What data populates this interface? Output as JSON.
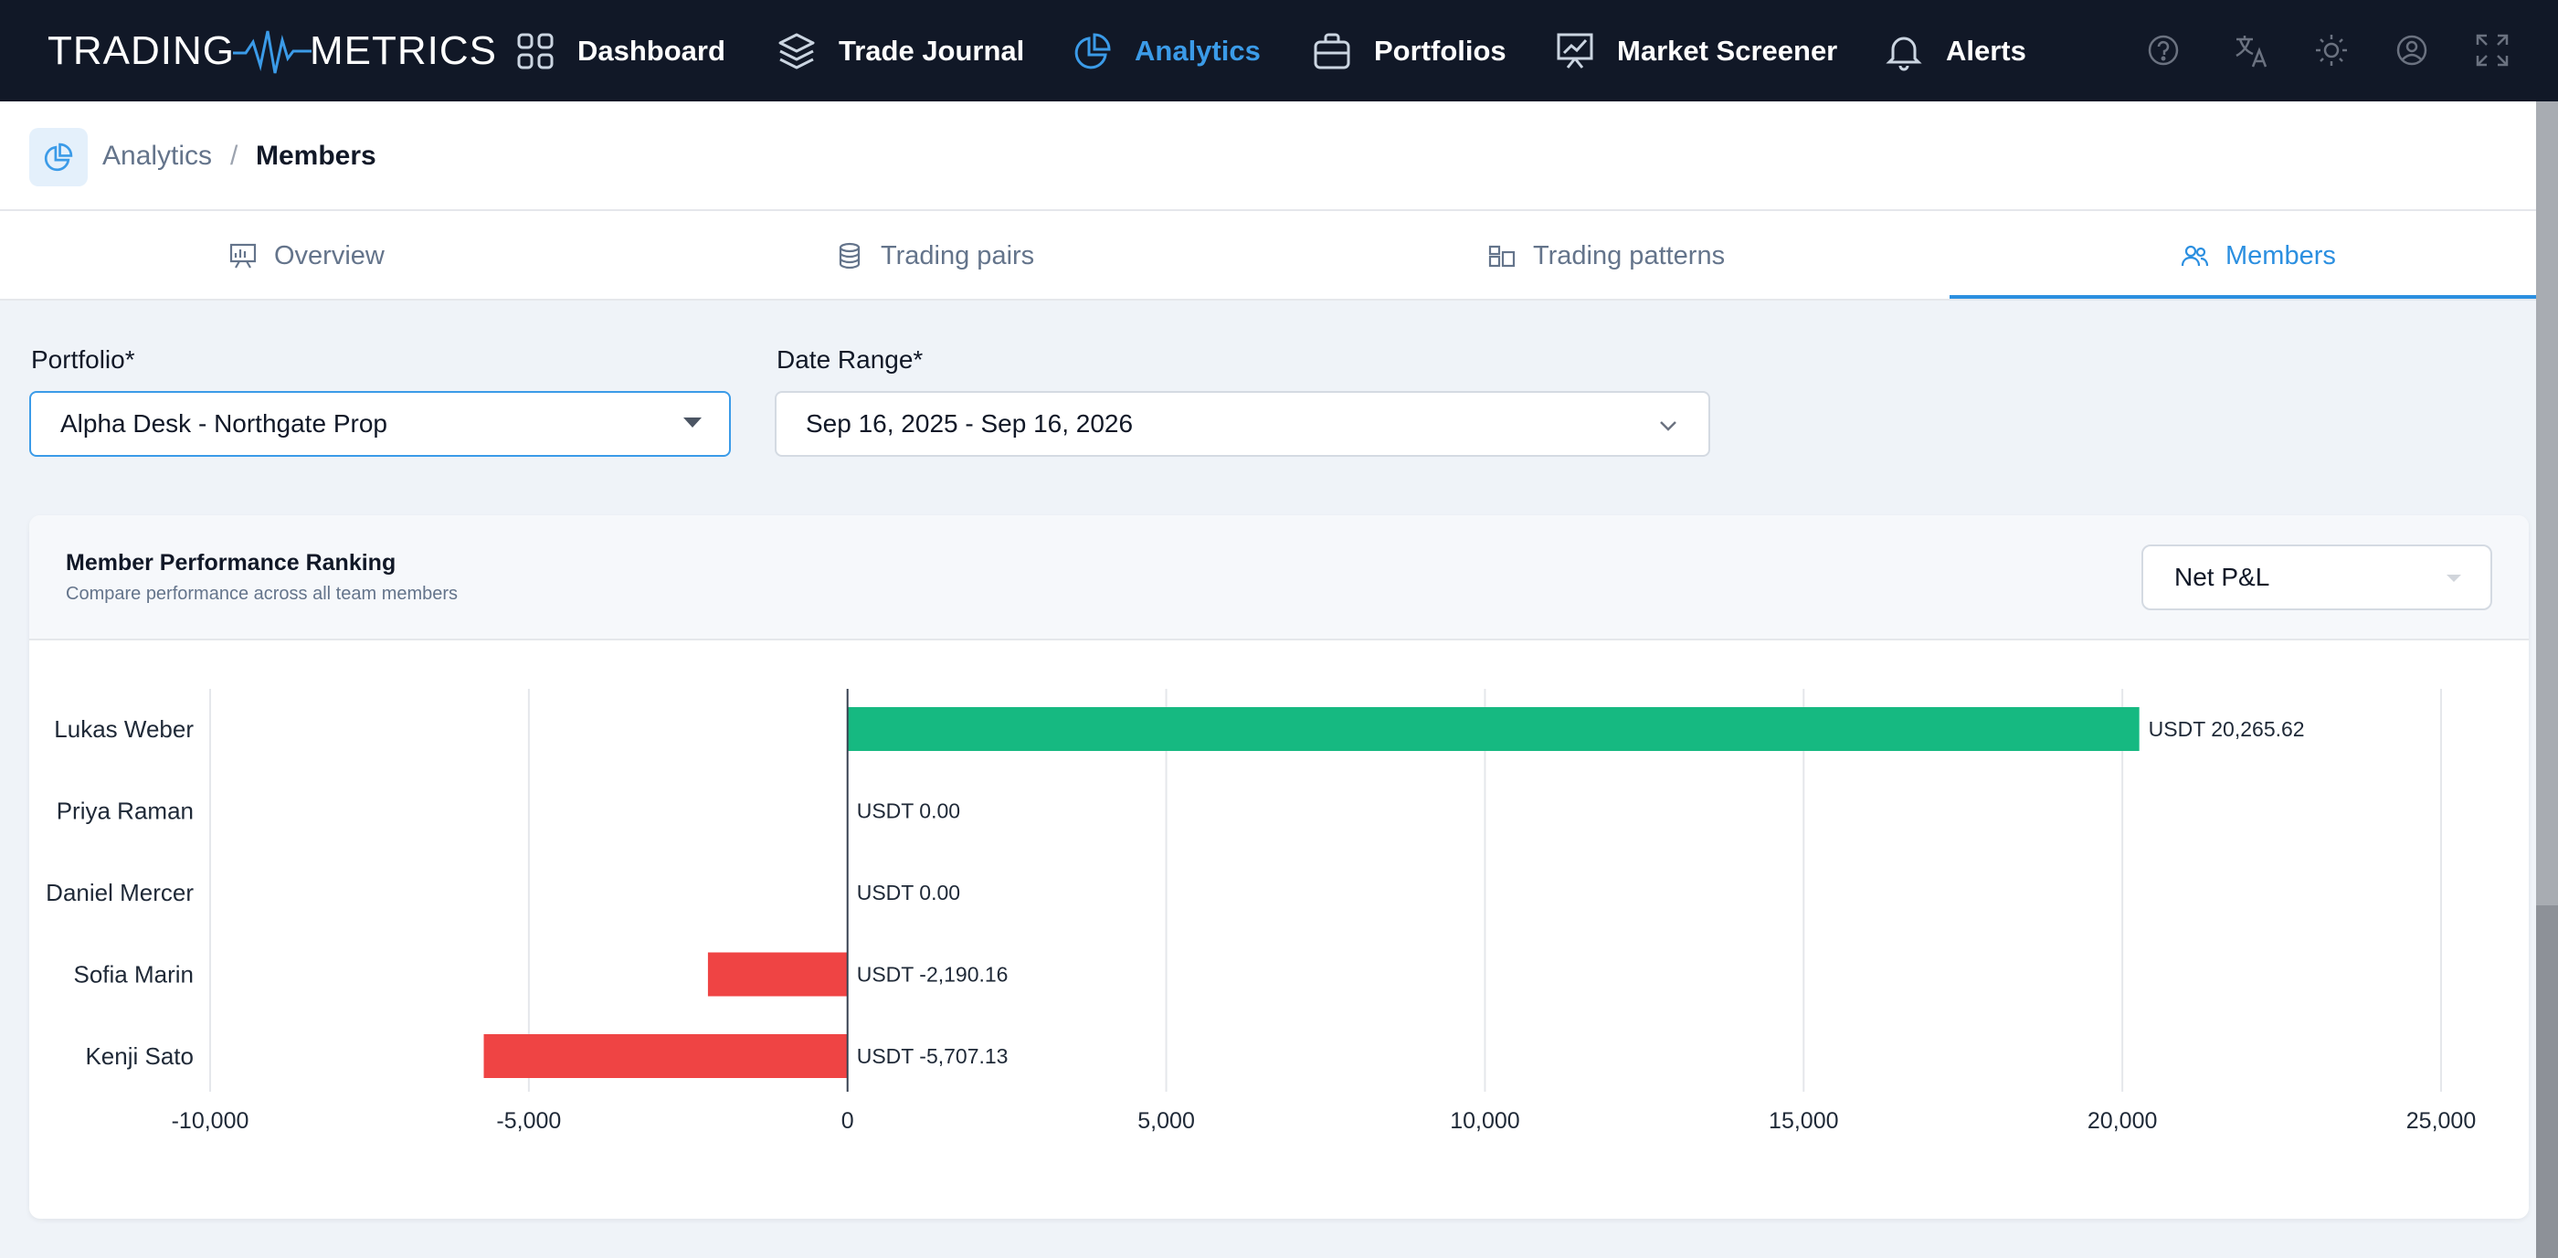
{
  "app": {
    "logo_left": "TRADING",
    "logo_right": "METRICS"
  },
  "nav": {
    "items": [
      {
        "label": "Dashboard",
        "icon": "grid-icon"
      },
      {
        "label": "Trade Journal",
        "icon": "layers-icon"
      },
      {
        "label": "Analytics",
        "icon": "pie-chart-icon",
        "active": true
      },
      {
        "label": "Portfolios",
        "icon": "briefcase-icon"
      },
      {
        "label": "Market Screener",
        "icon": "presentation-chart-icon"
      },
      {
        "label": "Alerts",
        "icon": "bell-icon"
      }
    ],
    "tools": [
      "help-icon",
      "translate-icon",
      "theme-sun-icon",
      "user-account-icon",
      "fullscreen-icon"
    ],
    "active_color": "#3b9be8",
    "background": "#111827"
  },
  "breadcrumb": {
    "section": "Analytics",
    "separator": "/",
    "current": "Members"
  },
  "tabs": [
    {
      "label": "Overview",
      "icon": "presentation-icon"
    },
    {
      "label": "Trading pairs",
      "icon": "database-icon"
    },
    {
      "label": "Trading patterns",
      "icon": "pattern-blocks-icon"
    },
    {
      "label": "Members",
      "icon": "users-icon",
      "active": true
    }
  ],
  "filters": {
    "portfolio_label": "Portfolio*",
    "portfolio_value": "Alpha Desk - Northgate Prop",
    "date_label": "Date Range*",
    "date_value": "Sep 16, 2025 - Sep 16, 2026"
  },
  "card": {
    "title": "Member Performance Ranking",
    "subtitle": "Compare performance across all team members",
    "metric_value": "Net P&L"
  },
  "chart_data": {
    "type": "bar",
    "orientation": "horizontal",
    "categories": [
      "Lukas Weber",
      "Priya Raman",
      "Daniel Mercer",
      "Sofia Marin",
      "Kenji Sato"
    ],
    "values": [
      20265.62,
      0,
      0,
      -2190.16,
      -5707.13
    ],
    "value_labels": [
      "USDT 20,265.62",
      "USDT 0.00",
      "USDT 0.00",
      "USDT -2,190.16",
      "USDT -5,707.13"
    ],
    "xlim": [
      -10000,
      25000
    ],
    "xticks": [
      "-10,000",
      "-5,000",
      "0",
      "5,000",
      "10,000",
      "15,000",
      "20,000",
      "25,000"
    ],
    "xtick_values": [
      -10000,
      -5000,
      0,
      5000,
      10000,
      15000,
      20000,
      25000
    ],
    "grid": true,
    "positive_color": "#16b981",
    "negative_color": "#ef4444"
  }
}
